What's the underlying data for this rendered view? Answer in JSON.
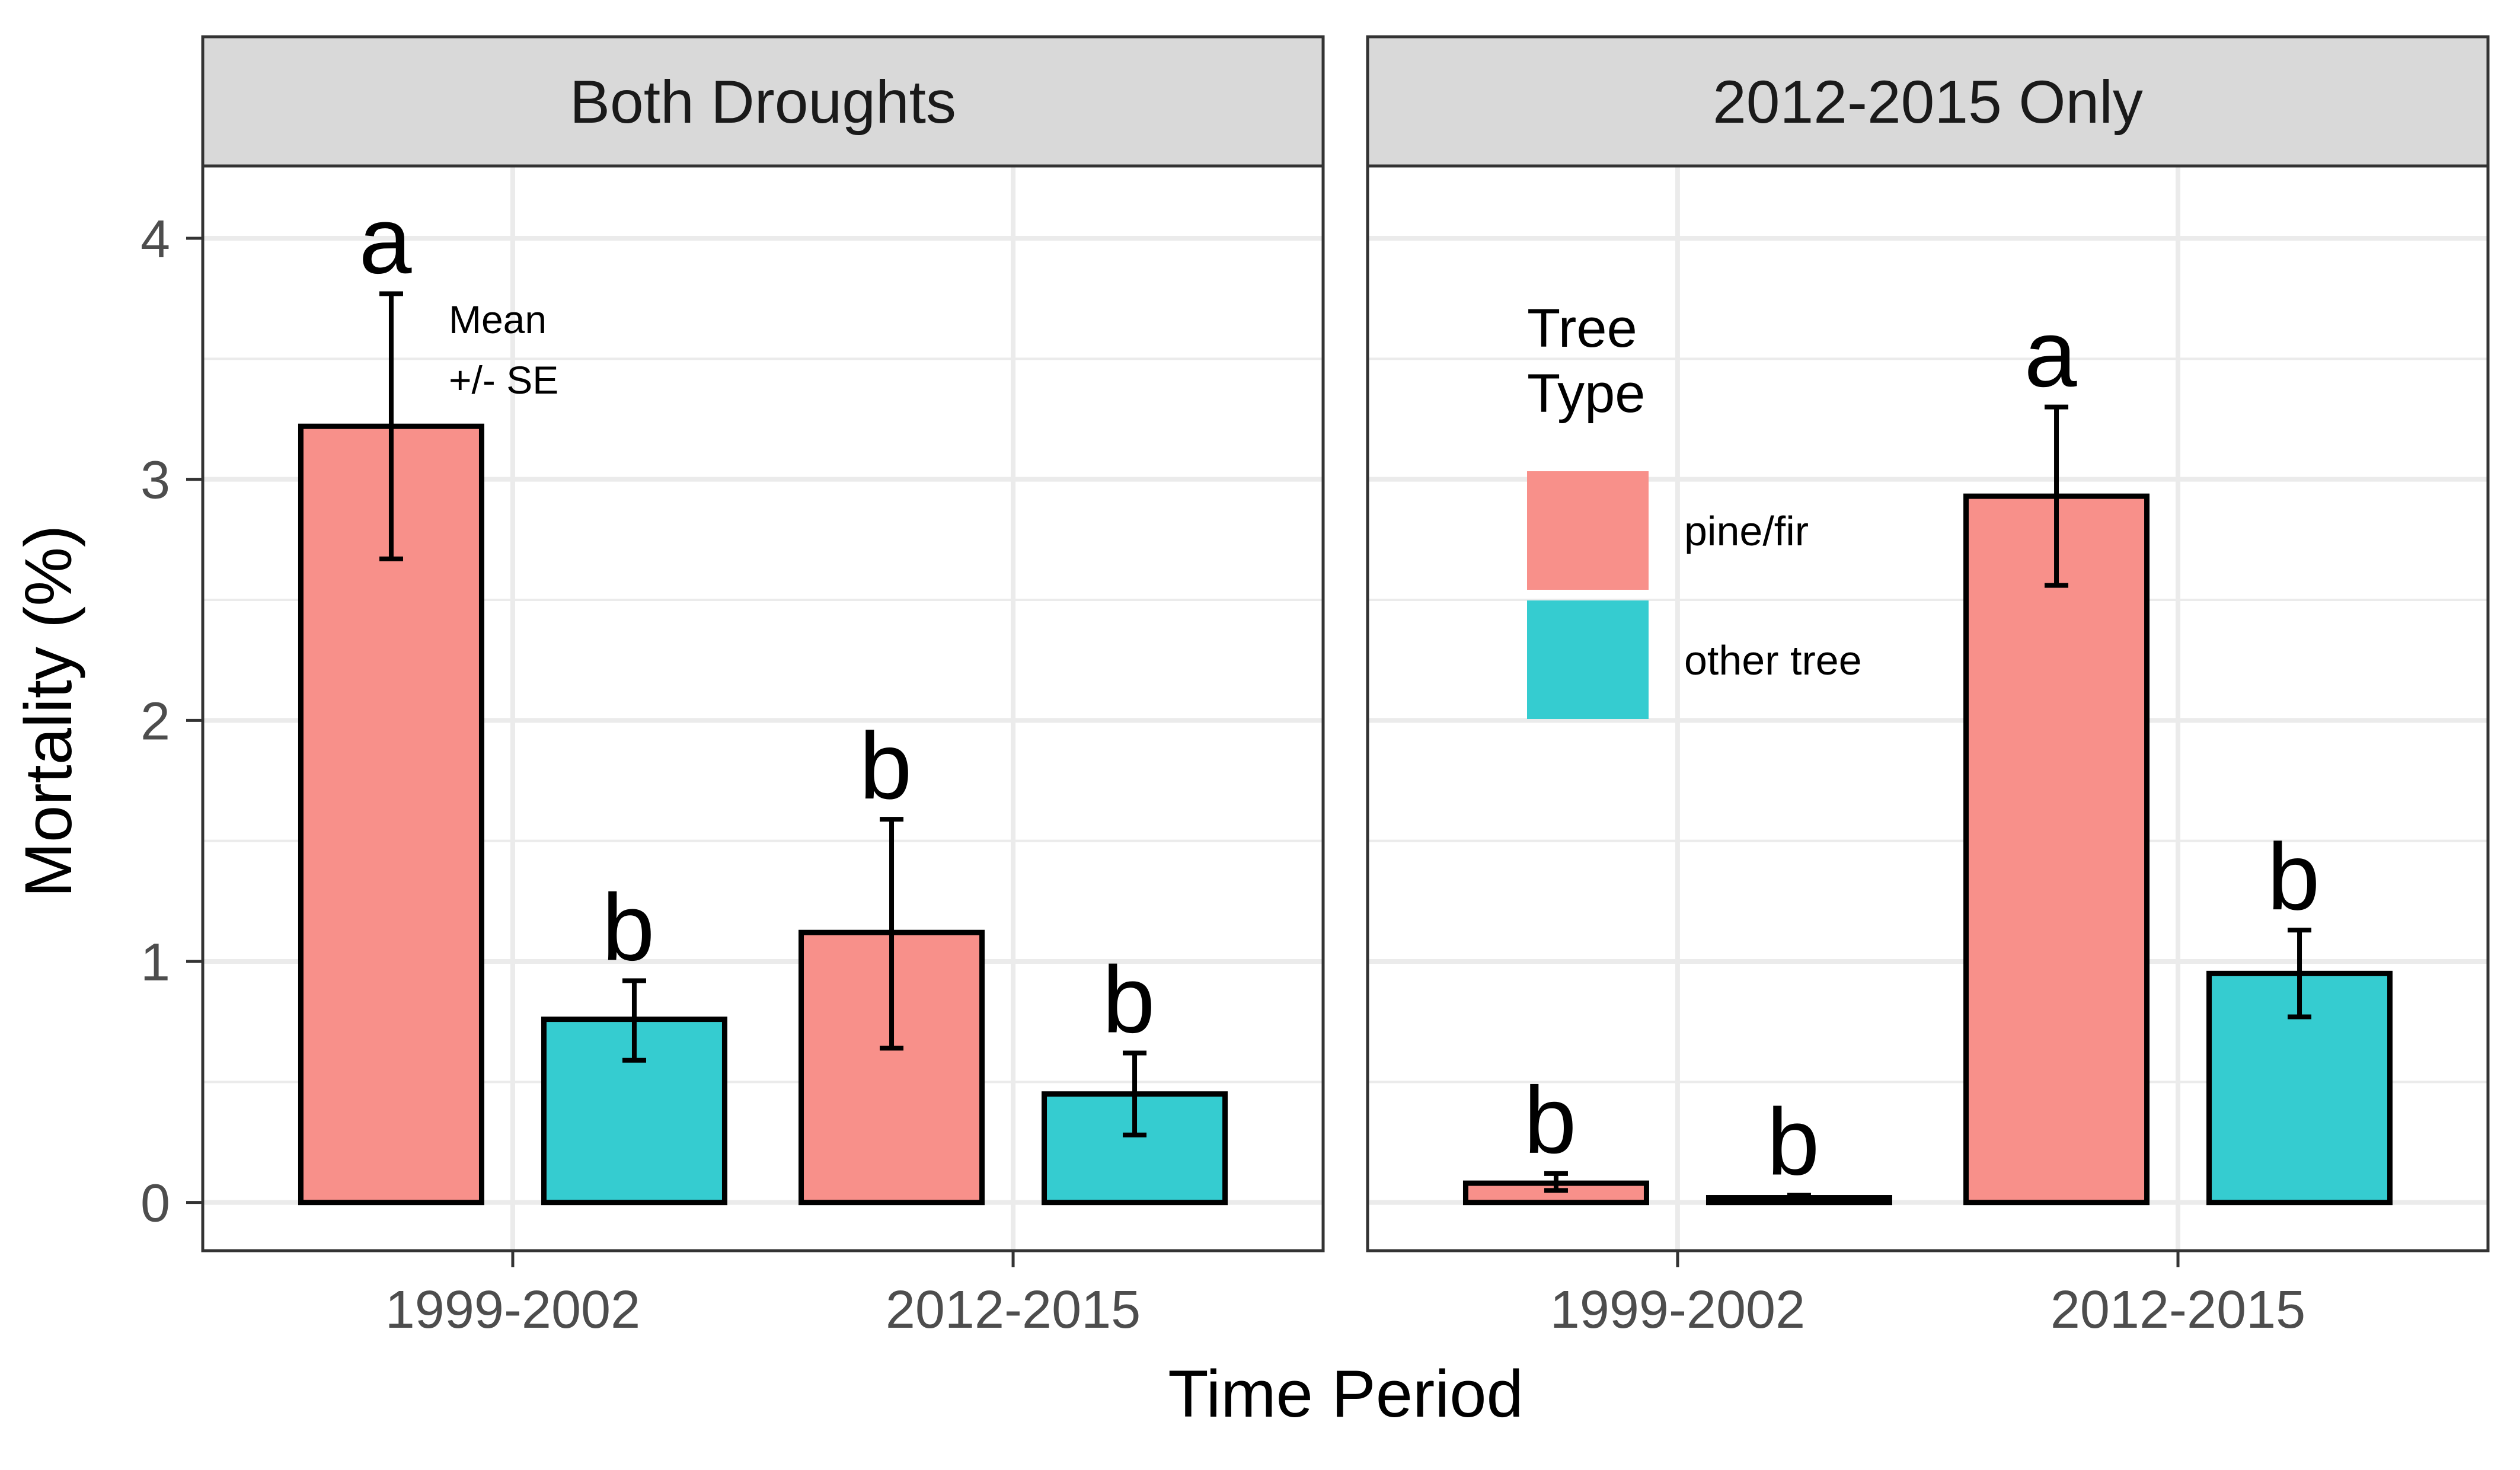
{
  "chart_data": {
    "type": "bar",
    "facets": [
      {
        "strip": "Both Droughts",
        "categories": [
          "1999-2002",
          "2012-2015"
        ],
        "series": [
          {
            "name": "pine/fir",
            "values": [
              3.22,
              1.12
            ],
            "se_low": [
              2.67,
              0.64
            ],
            "se_high": [
              3.77,
              1.59
            ],
            "letters": [
              "a",
              "b"
            ]
          },
          {
            "name": "other tree",
            "values": [
              0.76,
              0.45
            ],
            "se_low": [
              0.59,
              0.28
            ],
            "se_high": [
              0.92,
              0.62
            ],
            "letters": [
              "b",
              "b"
            ]
          }
        ]
      },
      {
        "strip": "2012-2015 Only",
        "categories": [
          "1999-2002",
          "2012-2015"
        ],
        "series": [
          {
            "name": "pine/fir",
            "values": [
              0.08,
              2.93
            ],
            "se_low": [
              0.05,
              2.56
            ],
            "se_high": [
              0.12,
              3.3
            ],
            "letters": [
              "b",
              "a"
            ]
          },
          {
            "name": "other tree",
            "values": [
              0.02,
              0.95
            ],
            "se_low": [
              0.01,
              0.77
            ],
            "se_high": [
              0.03,
              1.13
            ],
            "letters": [
              "b",
              "b"
            ]
          }
        ]
      }
    ],
    "xlabel": "Time Period",
    "ylabel": "Mortality (%)",
    "ylim": [
      -0.2,
      4.3
    ],
    "yticks": [
      "0",
      "1",
      "2",
      "3",
      "4"
    ],
    "grid": true,
    "annotation_lines": [
      "Mean",
      "+/- SE"
    ],
    "legend": {
      "title_lines": [
        "Tree",
        "Type"
      ],
      "placement": "inside second panel, top-left",
      "entries": [
        "pine/fir",
        "other tree"
      ]
    },
    "colors": {
      "pine/fir": "#F8908A",
      "other tree": "#35CCD0",
      "strip_fill": "#D9D9D9",
      "grid": "#EBEBEB",
      "border": "#333333"
    }
  }
}
